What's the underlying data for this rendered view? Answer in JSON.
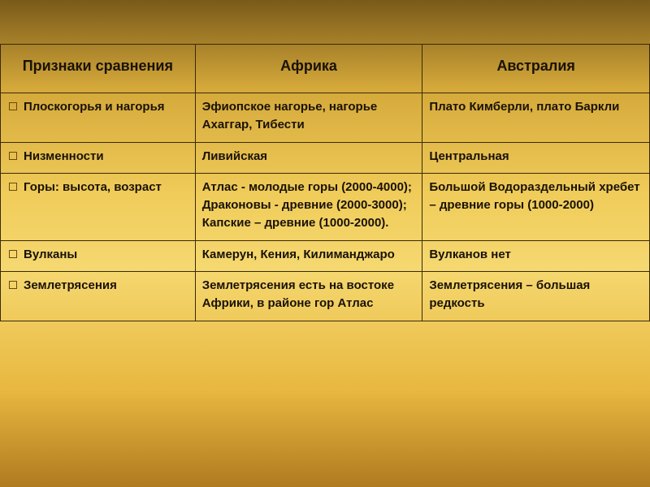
{
  "table": {
    "headers": [
      "Признаки сравнения",
      "Африка",
      "Австралия"
    ],
    "rows": [
      {
        "label": "Плоскогорья и нагорья",
        "africa": "Эфиопское нагорье, нагорье Ахаггар, Тибести",
        "australia": "Плато Кимберли, плато Баркли"
      },
      {
        "label": "Низменности",
        "africa": "Ливийская",
        "australia": "Центральная"
      },
      {
        "label": "Горы: высота, возраст",
        "africa": "Атлас - молодые горы (2000-4000);\nДраконовы - древние (2000-3000);\nКапские – древние (1000-2000).",
        "australia": "Большой Водораздельный хребет – древние горы (1000-2000)"
      },
      {
        "label": "Вулканы",
        "africa": "Камерун, Кения, Килиманджаро",
        "australia": "Вулканов нет"
      },
      {
        "label": "Землетрясения",
        "africa": "Землетрясения есть на востоке Африки, в районе гор Атлас",
        "australia": "Землетрясения – большая редкость"
      }
    ]
  }
}
